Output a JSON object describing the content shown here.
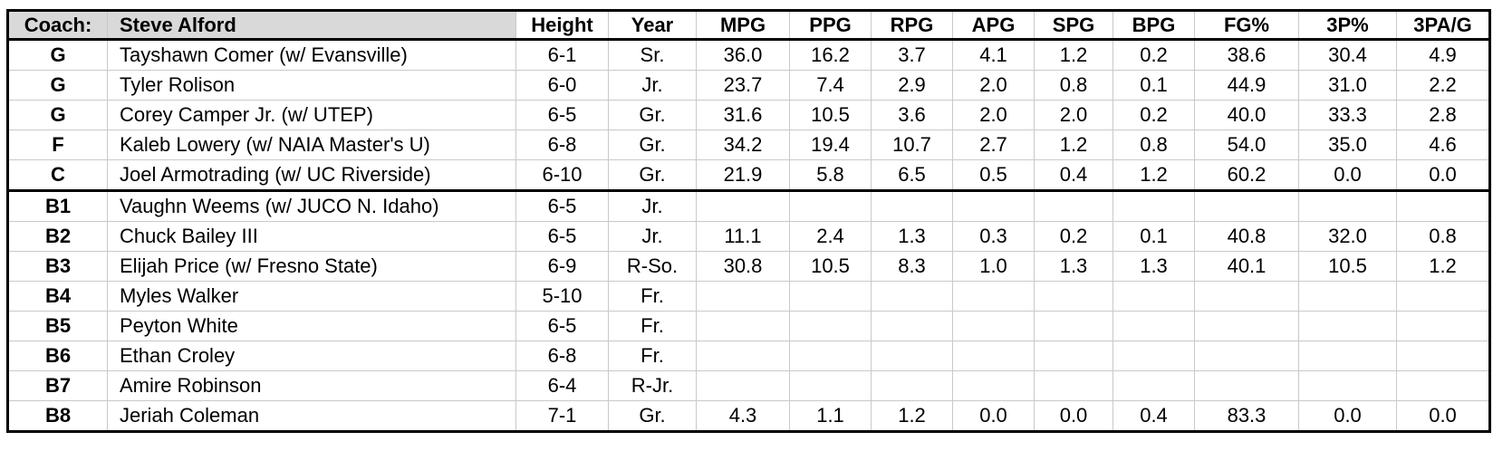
{
  "header": {
    "coach_label": "Coach:",
    "coach_name": "Steve Alford",
    "columns": [
      "Height",
      "Year",
      "MPG",
      "PPG",
      "RPG",
      "APG",
      "SPG",
      "BPG",
      "FG%",
      "3P%",
      "3PA/G"
    ]
  },
  "colors": {
    "header_fill": "#d9d9d9",
    "grid_line": "#c9c9c9",
    "section_border": "#000000",
    "text": "#000000"
  },
  "players": [
    {
      "pos": "G",
      "name": "Tayshawn Comer (w/ Evansville)",
      "height": "6-1",
      "year": "Sr.",
      "divider_before": false,
      "stats": [
        "36.0",
        "16.2",
        "3.7",
        "4.1",
        "1.2",
        "0.2",
        "38.6",
        "30.4",
        "4.9"
      ]
    },
    {
      "pos": "G",
      "name": "Tyler Rolison",
      "height": "6-0",
      "year": "Jr.",
      "divider_before": false,
      "stats": [
        "23.7",
        "7.4",
        "2.9",
        "2.0",
        "0.8",
        "0.1",
        "44.9",
        "31.0",
        "2.2"
      ]
    },
    {
      "pos": "G",
      "name": "Corey Camper Jr. (w/ UTEP)",
      "height": "6-5",
      "year": "Gr.",
      "divider_before": false,
      "stats": [
        "31.6",
        "10.5",
        "3.6",
        "2.0",
        "2.0",
        "0.2",
        "40.0",
        "33.3",
        "2.8"
      ]
    },
    {
      "pos": "F",
      "name": "Kaleb Lowery (w/ NAIA Master's U)",
      "height": "6-8",
      "year": "Gr.",
      "divider_before": false,
      "stats": [
        "34.2",
        "19.4",
        "10.7",
        "2.7",
        "1.2",
        "0.8",
        "54.0",
        "35.0",
        "4.6"
      ]
    },
    {
      "pos": "C",
      "name": "Joel Armotrading (w/ UC Riverside)",
      "height": "6-10",
      "year": "Gr.",
      "divider_before": false,
      "stats": [
        "21.9",
        "5.8",
        "6.5",
        "0.5",
        "0.4",
        "1.2",
        "60.2",
        "0.0",
        "0.0"
      ]
    },
    {
      "pos": "B1",
      "name": "Vaughn Weems (w/ JUCO N. Idaho)",
      "height": "6-5",
      "year": "Jr.",
      "divider_before": true,
      "stats": []
    },
    {
      "pos": "B2",
      "name": "Chuck Bailey III",
      "height": "6-5",
      "year": "Jr.",
      "divider_before": false,
      "stats": [
        "11.1",
        "2.4",
        "1.3",
        "0.3",
        "0.2",
        "0.1",
        "40.8",
        "32.0",
        "0.8"
      ]
    },
    {
      "pos": "B3",
      "name": "Elijah Price (w/ Fresno State)",
      "height": "6-9",
      "year": "R-So.",
      "divider_before": false,
      "stats": [
        "30.8",
        "10.5",
        "8.3",
        "1.0",
        "1.3",
        "1.3",
        "40.1",
        "10.5",
        "1.2"
      ]
    },
    {
      "pos": "B4",
      "name": "Myles Walker",
      "height": "5-10",
      "year": "Fr.",
      "divider_before": false,
      "stats": []
    },
    {
      "pos": "B5",
      "name": "Peyton White",
      "height": "6-5",
      "year": "Fr.",
      "divider_before": false,
      "stats": []
    },
    {
      "pos": "B6",
      "name": "Ethan Croley",
      "height": "6-8",
      "year": "Fr.",
      "divider_before": false,
      "stats": []
    },
    {
      "pos": "B7",
      "name": "Amire Robinson",
      "height": "6-4",
      "year": "R-Jr.",
      "divider_before": false,
      "stats": []
    },
    {
      "pos": "B8",
      "name": "Jeriah Coleman",
      "height": "7-1",
      "year": "Gr.",
      "divider_before": false,
      "stats": [
        "4.3",
        "1.1",
        "1.2",
        "0.0",
        "0.0",
        "0.4",
        "83.3",
        "0.0",
        "0.0"
      ]
    }
  ]
}
